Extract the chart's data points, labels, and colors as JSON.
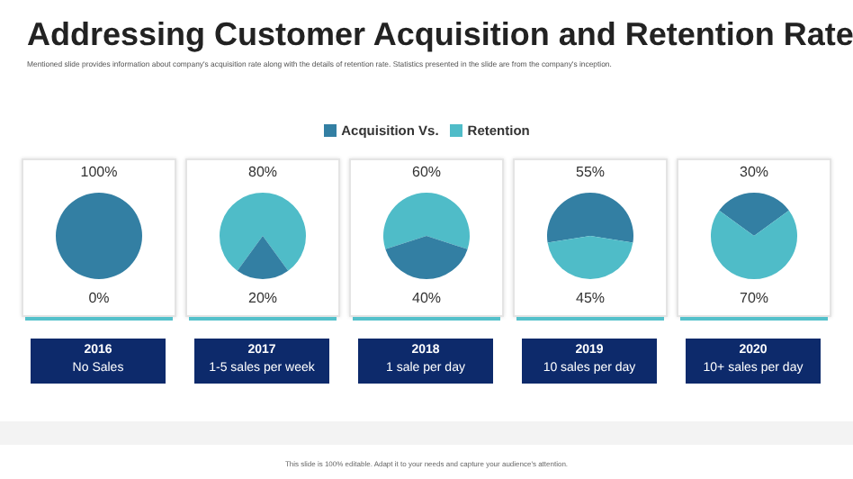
{
  "chart_data": [
    {
      "type": "pie",
      "title": "Addressing Customer Acquisition and Retention Rate",
      "subtitle": "Mentioned slide provides information about company's acquisition rate along with the details of retention rate. Statistics presented in the slide are from the company's inception.",
      "legend": "top",
      "categories": [
        "Acquisition Vs.",
        "Retention"
      ],
      "values": [
        100,
        0
      ],
      "value_labels": [
        "100%",
        "0%"
      ],
      "colors": [
        "#337fa3",
        "#4fbcc8"
      ],
      "xlabel": "2016",
      "annotations": [
        "No Sales",
        "This slide is 100% editable. Adapt it to your needs and capture your audience's attention."
      ]
    },
    {
      "type": "pie",
      "categories": [
        null,
        null
      ],
      "values": [
        80,
        20
      ],
      "value_labels": [
        "80%",
        "20%"
      ],
      "colors": [
        "#4fbcc8",
        "#337fa3"
      ],
      "xlabel": "2017",
      "annotations": [
        "1-5 sales per week"
      ]
    },
    {
      "type": "pie",
      "categories": [
        null,
        null
      ],
      "values": [
        60,
        40
      ],
      "value_labels": [
        "60%",
        "40%"
      ],
      "colors": [
        "#4fbcc8",
        "#337fa3"
      ],
      "xlabel": "2018",
      "annotations": [
        "1 sale per day"
      ]
    },
    {
      "type": "pie",
      "categories": [
        null,
        null
      ],
      "values": [
        55,
        45
      ],
      "value_labels": [
        "55%",
        "45%"
      ],
      "colors": [
        "#337fa3",
        "#4fbcc8"
      ],
      "xlabel": "2019",
      "annotations": [
        "10 sales per day"
      ]
    },
    {
      "type": "pie",
      "categories": [
        null,
        null
      ],
      "values": [
        30,
        70
      ],
      "value_labels": [
        "30%",
        "70%"
      ],
      "colors": [
        "#337fa3",
        "#4fbcc8"
      ],
      "xlabel": "2020",
      "annotations": [
        "10+ sales per day"
      ]
    }
  ]
}
